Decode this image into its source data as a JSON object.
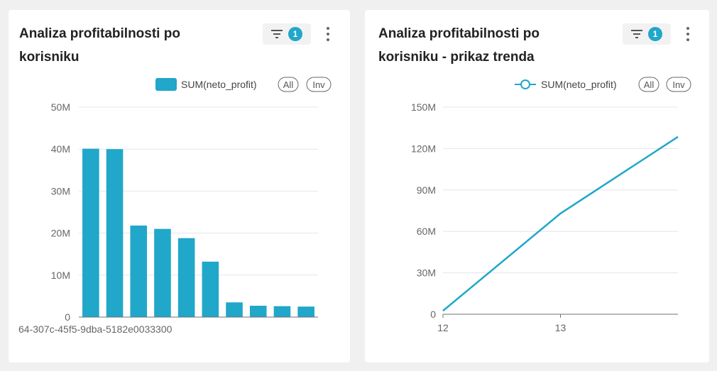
{
  "colors": {
    "accent": "#20a7c9",
    "grid": "#e3e6ee",
    "axis": "#6e7079"
  },
  "cards": [
    {
      "title": "Analiza profitabilnosti po korisniku",
      "filter_count": "1",
      "legend": {
        "label": "SUM(neto_profit)",
        "all_label": "All",
        "inv_label": "Inv"
      }
    },
    {
      "title": "Analiza profitabilnosti po korisniku - prikaz trenda",
      "filter_count": "1",
      "legend": {
        "label": "SUM(neto_profit)",
        "all_label": "All",
        "inv_label": "Inv"
      }
    }
  ],
  "chart_data": [
    {
      "type": "bar",
      "series": [
        {
          "name": "SUM(neto_profit)",
          "values": [
            40100000,
            40000000,
            21800000,
            21000000,
            18800000,
            13200000,
            3500000,
            2700000,
            2600000,
            2500000
          ]
        }
      ],
      "categories_visible_label": "64-307c-45f5-9dba-5182e0033300",
      "yticks": [
        "0",
        "10M",
        "20M",
        "30M",
        "40M",
        "50M"
      ],
      "ylim": [
        0,
        50000000
      ],
      "grid": true,
      "legend_position": "top-right"
    },
    {
      "type": "line",
      "series": [
        {
          "name": "SUM(neto_profit)",
          "x": [
            12,
            13,
            14
          ],
          "values": [
            2500000,
            73000000,
            128500000
          ]
        }
      ],
      "xticks": [
        "12",
        "13"
      ],
      "xlim": [
        12,
        14
      ],
      "yticks": [
        "0",
        "30M",
        "60M",
        "90M",
        "120M",
        "150M"
      ],
      "ylim": [
        0,
        150000000
      ],
      "grid": true,
      "legend_position": "top-right"
    }
  ]
}
